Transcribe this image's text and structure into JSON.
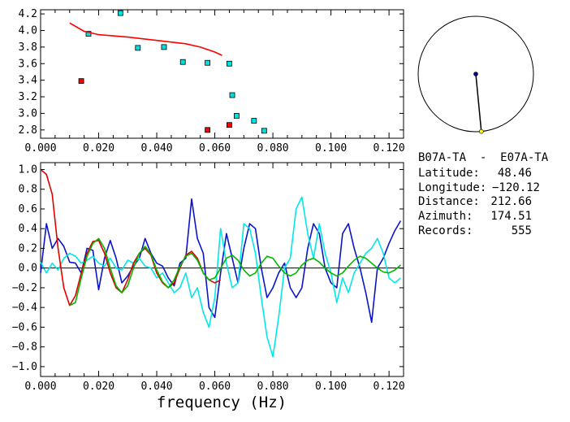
{
  "chart_data": [
    {
      "type": "scatter",
      "xlim": [
        0.0,
        0.125
      ],
      "ylim": [
        2.7,
        4.25
      ],
      "x_ticks": [
        "0.000",
        "0.020",
        "0.040",
        "0.060",
        "0.080",
        "0.100",
        "0.120"
      ],
      "y_ticks": [
        "2.8",
        "3.0",
        "3.2",
        "3.4",
        "3.6",
        "3.8",
        "4.0",
        "4.2"
      ],
      "y_tick_values": [
        2.8,
        3.0,
        3.2,
        3.4,
        3.6,
        3.8,
        4.0,
        4.2
      ],
      "grid": false,
      "series": [
        {
          "color": "#00e0e0",
          "marker": "square",
          "x": [
            0.0165,
            0.0275,
            0.0335,
            0.0425,
            0.049,
            0.0575,
            0.065,
            0.066,
            0.0675,
            0.0735,
            0.077
          ],
          "y": [
            3.96,
            4.21,
            3.79,
            3.8,
            3.62,
            3.61,
            3.6,
            3.22,
            2.97,
            2.91,
            2.79
          ]
        },
        {
          "color": "#ff0000",
          "marker": "square",
          "x": [
            0.014,
            0.0575,
            0.065
          ],
          "y": [
            3.39,
            2.8,
            2.86
          ]
        },
        {
          "color": "#ff0000",
          "line": true,
          "x": [
            0.01,
            0.015,
            0.02,
            0.03,
            0.04,
            0.05,
            0.055,
            0.06,
            0.0625
          ],
          "y": [
            4.09,
            3.99,
            3.95,
            3.92,
            3.88,
            3.84,
            3.8,
            3.74,
            3.7
          ]
        }
      ]
    },
    {
      "type": "line",
      "xlabel": "frequency (Hz)",
      "xlim": [
        0.0,
        0.125
      ],
      "ylim": [
        -1.1,
        1.07
      ],
      "x_ticks": [
        "0.000",
        "0.020",
        "0.040",
        "0.060",
        "0.080",
        "0.100",
        "0.120"
      ],
      "y_ticks": [
        "1.0",
        "0.8",
        "0.6",
        "0.4",
        "0.2",
        "0.0",
        "−0.2",
        "−0.4",
        "−0.6",
        "−0.8",
        "−1.0"
      ],
      "y_tick_values": [
        1.0,
        0.8,
        0.6,
        0.4,
        0.2,
        0.0,
        -0.2,
        -0.4,
        -0.6,
        -0.8,
        -1.0
      ],
      "zero_line": true,
      "series": [
        {
          "color": "#0a14c8",
          "x": [
            0,
            0.002,
            0.004,
            0.006,
            0.008,
            0.01,
            0.012,
            0.014,
            0.016,
            0.018,
            0.02,
            0.022,
            0.024,
            0.026,
            0.028,
            0.03,
            0.032,
            0.034,
            0.036,
            0.038,
            0.04,
            0.042,
            0.044,
            0.046,
            0.048,
            0.05,
            0.052,
            0.054,
            0.056,
            0.058,
            0.06,
            0.062,
            0.064,
            0.066,
            0.068,
            0.07,
            0.072,
            0.074,
            0.076,
            0.078,
            0.08,
            0.082,
            0.084,
            0.086,
            0.088,
            0.09,
            0.092,
            0.094,
            0.096,
            0.098,
            0.1,
            0.102,
            0.104,
            0.106,
            0.108,
            0.11,
            0.112,
            0.114,
            0.116,
            0.118,
            0.12,
            0.122,
            0.124
          ],
          "y": [
            -0.05,
            0.45,
            0.2,
            0.3,
            0.22,
            0.06,
            0.05,
            -0.05,
            0.2,
            0.18,
            -0.22,
            0.1,
            0.28,
            0.1,
            -0.15,
            -0.08,
            0.02,
            0.1,
            0.3,
            0.15,
            0.05,
            0.02,
            -0.1,
            -0.18,
            0.05,
            0.1,
            0.7,
            0.3,
            0.15,
            -0.4,
            -0.5,
            -0.05,
            0.35,
            0.1,
            -0.15,
            0.2,
            0.45,
            0.4,
            0.0,
            -0.3,
            -0.2,
            -0.05,
            0.05,
            -0.2,
            -0.3,
            -0.2,
            0.2,
            0.45,
            0.35,
            0.0,
            -0.15,
            -0.2,
            0.35,
            0.45,
            0.2,
            0.0,
            -0.25,
            -0.55,
            0.0,
            0.1,
            0.25,
            0.38,
            0.48
          ]
        },
        {
          "color": "#00e8e8",
          "x": [
            0,
            0.002,
            0.004,
            0.006,
            0.008,
            0.01,
            0.012,
            0.014,
            0.016,
            0.018,
            0.02,
            0.022,
            0.024,
            0.026,
            0.028,
            0.03,
            0.032,
            0.034,
            0.036,
            0.038,
            0.04,
            0.042,
            0.044,
            0.046,
            0.048,
            0.05,
            0.052,
            0.054,
            0.056,
            0.058,
            0.06,
            0.062,
            0.064,
            0.066,
            0.068,
            0.07,
            0.072,
            0.074,
            0.076,
            0.078,
            0.08,
            0.082,
            0.084,
            0.086,
            0.088,
            0.09,
            0.092,
            0.094,
            0.096,
            0.098,
            0.1,
            0.102,
            0.104,
            0.106,
            0.108,
            0.11,
            0.112,
            0.114,
            0.116,
            0.118,
            0.12,
            0.122,
            0.124
          ],
          "y": [
            0.06,
            -0.05,
            0.05,
            -0.02,
            0.1,
            0.15,
            0.12,
            0.05,
            0.08,
            0.12,
            0.05,
            0.02,
            0.1,
            0.0,
            -0.02,
            0.08,
            0.05,
            0.1,
            0.02,
            0.0,
            -0.1,
            -0.05,
            -0.15,
            -0.25,
            -0.2,
            -0.05,
            -0.3,
            -0.2,
            -0.45,
            -0.6,
            -0.3,
            0.4,
            0.05,
            -0.2,
            -0.15,
            0.45,
            0.4,
            0.15,
            -0.3,
            -0.7,
            -0.9,
            -0.5,
            0.0,
            0.1,
            0.6,
            0.72,
            0.35,
            0.1,
            0.45,
            0.15,
            -0.05,
            -0.35,
            -0.1,
            -0.25,
            -0.05,
            0.05,
            0.15,
            0.2,
            0.3,
            0.15,
            -0.1,
            -0.15,
            -0.1
          ]
        },
        {
          "color": "#e00000",
          "x": [
            0,
            0.002,
            0.004,
            0.006,
            0.008,
            0.01,
            0.012,
            0.014,
            0.016,
            0.018,
            0.02,
            0.022,
            0.024,
            0.026,
            0.028,
            0.03,
            0.032,
            0.034,
            0.036,
            0.038,
            0.04,
            0.042,
            0.044,
            0.046,
            0.048,
            0.05,
            0.052,
            0.054,
            0.056,
            0.058,
            0.06,
            0.062
          ],
          "y": [
            1.0,
            0.95,
            0.75,
            0.2,
            -0.2,
            -0.38,
            -0.28,
            -0.05,
            0.15,
            0.27,
            0.28,
            0.15,
            -0.05,
            -0.2,
            -0.25,
            -0.12,
            0.05,
            0.15,
            0.2,
            0.13,
            -0.05,
            -0.15,
            -0.2,
            -0.15,
            0.0,
            0.13,
            0.17,
            0.1,
            -0.05,
            -0.12,
            -0.15,
            -0.12
          ]
        },
        {
          "color": "#00b800",
          "x": [
            0.01,
            0.012,
            0.014,
            0.016,
            0.018,
            0.02,
            0.022,
            0.024,
            0.026,
            0.028,
            0.03,
            0.032,
            0.034,
            0.036,
            0.038,
            0.04,
            0.042,
            0.044,
            0.046,
            0.048,
            0.05,
            0.052,
            0.054,
            0.056,
            0.058,
            0.06,
            0.062,
            0.064,
            0.066,
            0.068,
            0.07,
            0.072,
            0.074,
            0.076,
            0.078,
            0.08,
            0.082,
            0.084,
            0.086,
            0.088,
            0.09,
            0.092,
            0.094,
            0.096,
            0.098,
            0.1,
            0.102,
            0.104,
            0.106,
            0.108,
            0.11,
            0.112,
            0.114,
            0.116,
            0.118,
            0.12,
            0.122,
            0.124
          ],
          "y": [
            -0.38,
            -0.35,
            -0.1,
            0.12,
            0.25,
            0.3,
            0.2,
            0.0,
            -0.18,
            -0.25,
            -0.18,
            0.0,
            0.15,
            0.22,
            0.14,
            -0.02,
            -0.14,
            -0.2,
            -0.12,
            0.02,
            0.12,
            0.15,
            0.08,
            -0.05,
            -0.12,
            -0.1,
            0.0,
            0.1,
            0.13,
            0.08,
            -0.02,
            -0.08,
            -0.05,
            0.05,
            0.12,
            0.1,
            0.02,
            -0.05,
            -0.08,
            -0.05,
            0.03,
            0.08,
            0.1,
            0.06,
            0.0,
            -0.05,
            -0.08,
            -0.05,
            0.02,
            0.08,
            0.12,
            0.1,
            0.05,
            0.0,
            -0.04,
            -0.05,
            -0.02,
            0.03
          ]
        }
      ]
    }
  ],
  "info": {
    "station_pair": "B07A-TA  -  E07A-TA",
    "rows": [
      {
        "label": "Latitude:",
        "value": "48.46"
      },
      {
        "label": "Longitude:",
        "value": "−120.12"
      },
      {
        "label": "Distance:",
        "value": "212.66"
      },
      {
        "label": "Azimuth:",
        "value": "174.51"
      },
      {
        "label": "Records:",
        "value": "555"
      }
    ],
    "azimuth_deg": 174.51,
    "azimuth_color": "#000000",
    "center_marker_color": "#00008b",
    "end_marker_color": "#ffff00"
  }
}
